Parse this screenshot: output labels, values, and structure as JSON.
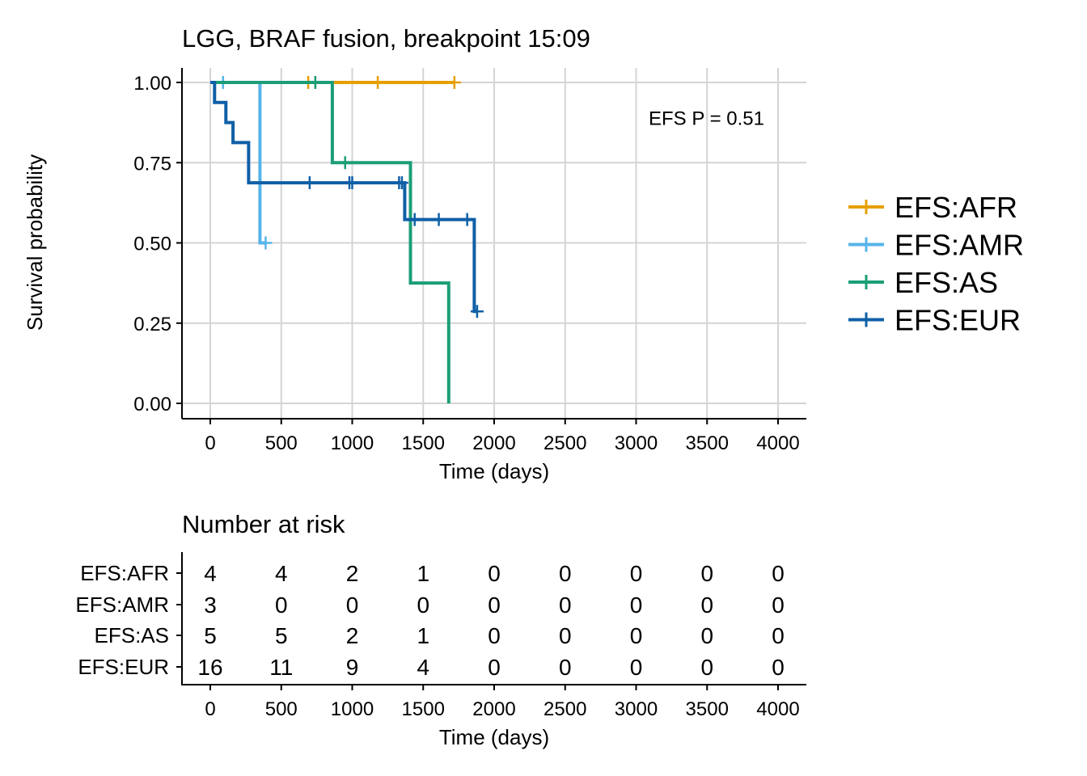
{
  "chart_data": [
    {
      "type": "line",
      "subtype": "kaplan-meier",
      "title": "LGG, BRAF fusion, breakpoint 15:09",
      "xlabel": "Time (days)",
      "ylabel": "Survival probability",
      "xlim": [
        0,
        4000
      ],
      "ylim": [
        0,
        1
      ],
      "x_ticks": [
        "0",
        "500",
        "1000",
        "1500",
        "2000",
        "2500",
        "3000",
        "3500",
        "4000"
      ],
      "x_tick_values": [
        0,
        500,
        1000,
        1500,
        2000,
        2500,
        3000,
        3500,
        4000
      ],
      "y_ticks": [
        "0.00",
        "0.25",
        "0.50",
        "0.75",
        "1.00"
      ],
      "y_tick_values": [
        0,
        0.25,
        0.5,
        0.75,
        1.0
      ],
      "grid": true,
      "legend_position": "right",
      "annotation": "EFS P = 0.51",
      "annotation_position": {
        "x": 3000,
        "y": 0.89
      },
      "series": [
        {
          "name": "EFS:AFR",
          "color": "#E69F00",
          "steps": [
            [
              0,
              1.0
            ],
            [
              1720,
              1.0
            ]
          ],
          "censors": [
            [
              690,
              1.0
            ],
            [
              740,
              1.0
            ],
            [
              1180,
              1.0
            ],
            [
              1720,
              1.0
            ]
          ]
        },
        {
          "name": "EFS:AMR",
          "color": "#56B4E9",
          "steps": [
            [
              0,
              1.0
            ],
            [
              350,
              1.0
            ],
            [
              350,
              0.5
            ],
            [
              390,
              0.5
            ]
          ],
          "censors": [
            [
              90,
              1.0
            ],
            [
              390,
              0.5
            ]
          ]
        },
        {
          "name": "EFS:AS",
          "color": "#1B9E77",
          "steps": [
            [
              0,
              1.0
            ],
            [
              860,
              1.0
            ],
            [
              860,
              0.75
            ],
            [
              1410,
              0.75
            ],
            [
              1410,
              0.375
            ],
            [
              1680,
              0.375
            ],
            [
              1680,
              0.0
            ]
          ],
          "censors": [
            [
              740,
              1.0
            ],
            [
              950,
              0.75
            ]
          ]
        },
        {
          "name": "EFS:EUR",
          "color": "#0F5FA6",
          "steps": [
            [
              0,
              1.0
            ],
            [
              30,
              1.0
            ],
            [
              30,
              0.9375
            ],
            [
              110,
              0.9375
            ],
            [
              110,
              0.875
            ],
            [
              160,
              0.875
            ],
            [
              160,
              0.8125
            ],
            [
              270,
              0.8125
            ],
            [
              270,
              0.6875
            ],
            [
              1370,
              0.6875
            ],
            [
              1370,
              0.5729
            ],
            [
              1860,
              0.5729
            ],
            [
              1860,
              0.2865
            ],
            [
              1880,
              0.2865
            ]
          ],
          "censors": [
            [
              700,
              0.6875
            ],
            [
              980,
              0.6875
            ],
            [
              1000,
              0.6875
            ],
            [
              1330,
              0.6875
            ],
            [
              1350,
              0.6875
            ],
            [
              1440,
              0.5729
            ],
            [
              1610,
              0.5729
            ],
            [
              1810,
              0.5729
            ],
            [
              1880,
              0.2865
            ]
          ]
        }
      ]
    },
    {
      "type": "table",
      "title": "Number at risk",
      "xlabel": "Time (days)",
      "x_ticks": [
        "0",
        "500",
        "1000",
        "1500",
        "2000",
        "2500",
        "3000",
        "3500",
        "4000"
      ],
      "x_tick_values": [
        0,
        500,
        1000,
        1500,
        2000,
        2500,
        3000,
        3500,
        4000
      ],
      "rows": [
        {
          "name": "EFS:AFR",
          "color": "#E69F00",
          "values": [
            4,
            4,
            2,
            1,
            0,
            0,
            0,
            0,
            0
          ]
        },
        {
          "name": "EFS:AMR",
          "color": "#56B4E9",
          "values": [
            3,
            0,
            0,
            0,
            0,
            0,
            0,
            0,
            0
          ]
        },
        {
          "name": "EFS:AS",
          "color": "#1B9E77",
          "values": [
            5,
            5,
            2,
            1,
            0,
            0,
            0,
            0,
            0
          ]
        },
        {
          "name": "EFS:EUR",
          "color": "#0F5FA6",
          "values": [
            16,
            11,
            9,
            4,
            0,
            0,
            0,
            0,
            0
          ]
        }
      ]
    }
  ]
}
